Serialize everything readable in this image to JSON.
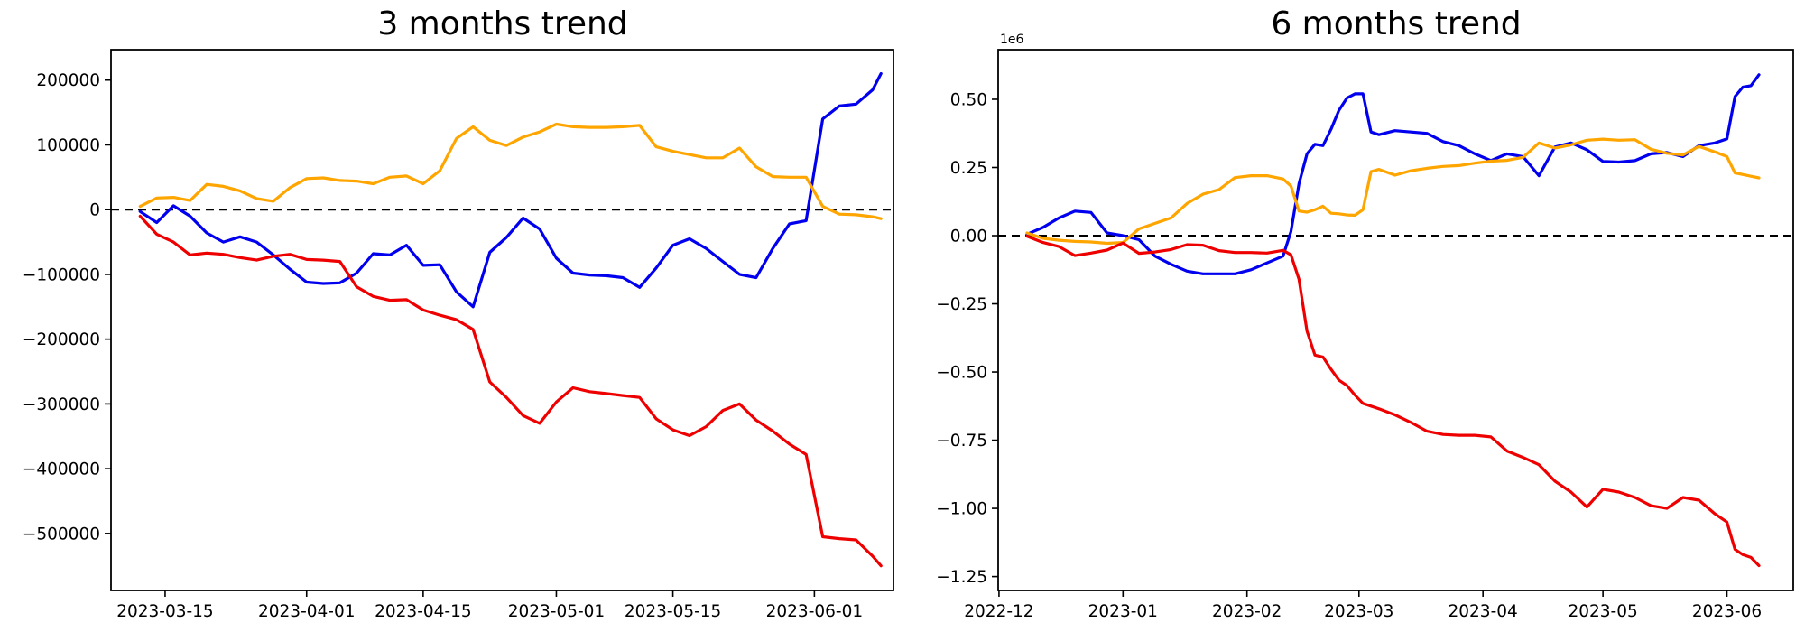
{
  "figure": {
    "background": "#ffffff",
    "text_color": "#000000",
    "spine_color": "#000000",
    "zero_line_color": "#000000"
  },
  "charts": [
    {
      "title": "3 months trend",
      "type": "line",
      "legend": "none",
      "grid": false,
      "zero_line": true,
      "x_domain": [
        "2023-03-08T12:00:00Z",
        "2023-06-10T12:00:00Z"
      ],
      "y_domain": [
        -588000,
        247000
      ],
      "x_ticks": [
        {
          "date": "2023-03-15",
          "label": "2023-03-15"
        },
        {
          "date": "2023-04-01",
          "label": "2023-04-01"
        },
        {
          "date": "2023-04-15",
          "label": "2023-04-15"
        },
        {
          "date": "2023-05-01",
          "label": "2023-05-01"
        },
        {
          "date": "2023-05-15",
          "label": "2023-05-15"
        },
        {
          "date": "2023-06-01",
          "label": "2023-06-01"
        }
      ],
      "y_ticks": [
        {
          "value": 200000,
          "label": "200000"
        },
        {
          "value": 100000,
          "label": "100000"
        },
        {
          "value": 0,
          "label": "0"
        },
        {
          "value": -100000,
          "label": "−100000"
        },
        {
          "value": -200000,
          "label": "−200000"
        },
        {
          "value": -300000,
          "label": "−300000"
        },
        {
          "value": -400000,
          "label": "−400000"
        },
        {
          "value": -500000,
          "label": "−500000"
        }
      ],
      "offset_text": "",
      "x": [
        "2023-03-12",
        "2023-03-14",
        "2023-03-16",
        "2023-03-18",
        "2023-03-20",
        "2023-03-22",
        "2023-03-24",
        "2023-03-26",
        "2023-03-28",
        "2023-03-30",
        "2023-04-01",
        "2023-04-03",
        "2023-04-05",
        "2023-04-07",
        "2023-04-09",
        "2023-04-11",
        "2023-04-13",
        "2023-04-15",
        "2023-04-17",
        "2023-04-19",
        "2023-04-21",
        "2023-04-23",
        "2023-04-25",
        "2023-04-27",
        "2023-04-29",
        "2023-05-01",
        "2023-05-03",
        "2023-05-05",
        "2023-05-07",
        "2023-05-09",
        "2023-05-11",
        "2023-05-13",
        "2023-05-15",
        "2023-05-17",
        "2023-05-19",
        "2023-05-21",
        "2023-05-23",
        "2023-05-25",
        "2023-05-27",
        "2023-05-29",
        "2023-05-31",
        "2023-06-02",
        "2023-06-04",
        "2023-06-06",
        "2023-06-08",
        "2023-06-09"
      ],
      "series": [
        {
          "name": "blue",
          "color": "#0000ee",
          "values": [
            -3000,
            -20000,
            6000,
            -10000,
            -36000,
            -50000,
            -42000,
            -50000,
            -70000,
            -92000,
            -112000,
            -114000,
            -113000,
            -98000,
            -68000,
            -70000,
            -55000,
            -86000,
            -85000,
            -127000,
            -150000,
            -66000,
            -43000,
            -13000,
            -30000,
            -75000,
            -98000,
            -101000,
            -102000,
            -105000,
            -120000,
            -90000,
            -55000,
            -45000,
            -60000,
            -80000,
            -100000,
            -105000,
            -60000,
            -22000,
            -17000,
            140000,
            160000,
            163000,
            185000,
            210000
          ]
        },
        {
          "name": "orange",
          "color": "#ffa500",
          "values": [
            5000,
            18000,
            19000,
            14000,
            39000,
            36000,
            29000,
            17000,
            13000,
            34000,
            48000,
            49000,
            45000,
            44000,
            40000,
            50000,
            52000,
            40000,
            60000,
            110000,
            128000,
            107000,
            99000,
            112000,
            120000,
            132000,
            128000,
            127000,
            127000,
            128000,
            130000,
            97000,
            90000,
            85000,
            80000,
            80000,
            95000,
            66000,
            51000,
            50000,
            50000,
            5000,
            -7000,
            -8000,
            -11000,
            -14000
          ]
        },
        {
          "name": "red",
          "color": "#ee0000",
          "values": [
            -10000,
            -38000,
            -50000,
            -70000,
            -67000,
            -69000,
            -74000,
            -78000,
            -72000,
            -69000,
            -77000,
            -78000,
            -80000,
            -119000,
            -134000,
            -140000,
            -139000,
            -155000,
            -163000,
            -170000,
            -185000,
            -266000,
            -290000,
            -318000,
            -330000,
            -297000,
            -275000,
            -281000,
            -284000,
            -287000,
            -290000,
            -323000,
            -340000,
            -349000,
            -335000,
            -310000,
            -300000,
            -325000,
            -342000,
            -362000,
            -378000,
            -505000,
            -508000,
            -510000,
            -535000,
            -550000
          ]
        }
      ]
    },
    {
      "title": "6 months trend",
      "type": "line",
      "legend": "none",
      "grid": false,
      "zero_line": true,
      "x_domain": [
        "2022-11-30T19:00:00Z",
        "2023-06-17T14:00:00Z"
      ],
      "y_domain": [
        -1301000,
        682000
      ],
      "x_ticks": [
        {
          "date": "2022-12-01",
          "label": "2022-12"
        },
        {
          "date": "2023-01-01",
          "label": "2023-01"
        },
        {
          "date": "2023-02-01",
          "label": "2023-02"
        },
        {
          "date": "2023-03-01",
          "label": "2023-03"
        },
        {
          "date": "2023-04-01",
          "label": "2023-04"
        },
        {
          "date": "2023-05-01",
          "label": "2023-05"
        },
        {
          "date": "2023-06-01",
          "label": "2023-06"
        }
      ],
      "y_ticks": [
        {
          "value": 500000,
          "label": "0.50"
        },
        {
          "value": 250000,
          "label": "0.25"
        },
        {
          "value": 0,
          "label": "0.00"
        },
        {
          "value": -250000,
          "label": "−0.25"
        },
        {
          "value": -500000,
          "label": "−0.50"
        },
        {
          "value": -750000,
          "label": "−0.75"
        },
        {
          "value": -1000000,
          "label": "−1.00"
        },
        {
          "value": -1250000,
          "label": "−1.25"
        }
      ],
      "offset_text": "1e6",
      "x": [
        "2022-12-08",
        "2022-12-12",
        "2022-12-16",
        "2022-12-20",
        "2022-12-24",
        "2022-12-28",
        "2023-01-01",
        "2023-01-05",
        "2023-01-09",
        "2023-01-13",
        "2023-01-17",
        "2023-01-21",
        "2023-01-25",
        "2023-01-29",
        "2023-02-02",
        "2023-02-06",
        "2023-02-10",
        "2023-02-12",
        "2023-02-14",
        "2023-02-16",
        "2023-02-18",
        "2023-02-20",
        "2023-02-22",
        "2023-02-24",
        "2023-02-26",
        "2023-02-28",
        "2023-03-02",
        "2023-03-04",
        "2023-03-06",
        "2023-03-10",
        "2023-03-14",
        "2023-03-18",
        "2023-03-22",
        "2023-03-26",
        "2023-03-30",
        "2023-04-03",
        "2023-04-07",
        "2023-04-11",
        "2023-04-15",
        "2023-04-19",
        "2023-04-23",
        "2023-04-27",
        "2023-05-01",
        "2023-05-05",
        "2023-05-09",
        "2023-05-13",
        "2023-05-17",
        "2023-05-21",
        "2023-05-25",
        "2023-05-29",
        "2023-06-01",
        "2023-06-03",
        "2023-06-05",
        "2023-06-07",
        "2023-06-09"
      ],
      "series": [
        {
          "name": "blue",
          "color": "#0000ee",
          "values": [
            5000,
            30000,
            65000,
            90000,
            85000,
            10000,
            0,
            -15000,
            -75000,
            -105000,
            -130000,
            -140000,
            -140000,
            -140000,
            -125000,
            -100000,
            -75000,
            15000,
            190000,
            300000,
            335000,
            330000,
            390000,
            460000,
            505000,
            520000,
            520000,
            380000,
            370000,
            385000,
            380000,
            375000,
            345000,
            330000,
            300000,
            275000,
            300000,
            290000,
            220000,
            325000,
            340000,
            315000,
            272000,
            270000,
            275000,
            300000,
            305000,
            290000,
            330000,
            340000,
            355000,
            510000,
            545000,
            550000,
            590000
          ]
        },
        {
          "name": "orange",
          "color": "#ffa500",
          "values": [
            10000,
            -10000,
            -17000,
            -21000,
            -23000,
            -28000,
            -25000,
            25000,
            45000,
            65000,
            118000,
            152000,
            169000,
            213000,
            220000,
            220000,
            208000,
            182000,
            90000,
            86000,
            95000,
            108000,
            82000,
            80000,
            76000,
            75000,
            95000,
            235000,
            243000,
            222000,
            238000,
            247000,
            254000,
            257000,
            266000,
            273000,
            276000,
            287000,
            340000,
            321000,
            333000,
            350000,
            354000,
            350000,
            352000,
            317000,
            302000,
            296000,
            327000,
            307000,
            290000,
            230000,
            224000,
            218000,
            212000
          ]
        },
        {
          "name": "red",
          "color": "#ee0000",
          "values": [
            -2000,
            -25000,
            -40000,
            -73000,
            -64000,
            -53000,
            -27000,
            -65000,
            -60000,
            -51000,
            -33000,
            -35000,
            -55000,
            -62000,
            -62000,
            -64000,
            -54000,
            -70000,
            -160000,
            -350000,
            -438000,
            -445000,
            -490000,
            -530000,
            -550000,
            -585000,
            -615000,
            -625000,
            -635000,
            -657000,
            -685000,
            -717000,
            -729000,
            -732000,
            -732000,
            -738000,
            -790000,
            -813000,
            -840000,
            -900000,
            -940000,
            -995000,
            -930000,
            -940000,
            -960000,
            -990000,
            -1000000,
            -960000,
            -970000,
            -1020000,
            -1050000,
            -1150000,
            -1170000,
            -1180000,
            -1210000
          ]
        }
      ]
    }
  ]
}
